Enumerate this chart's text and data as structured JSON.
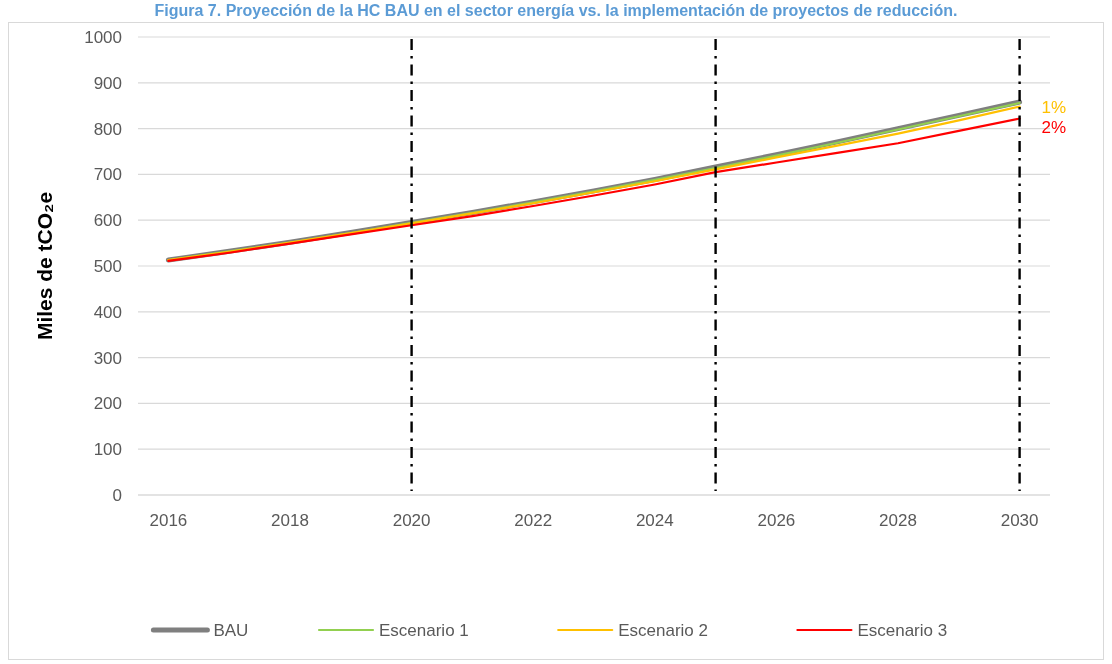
{
  "chart_data": {
    "type": "line",
    "title": "Figura 7. Proyección de la HC BAU en el sector energía vs. la implementación de proyectos de reducción.",
    "ylabel": "Miles de tCO₂e",
    "x": [
      2016,
      2017,
      2018,
      2019,
      2020,
      2021,
      2022,
      2023,
      2024,
      2025,
      2026,
      2027,
      2028,
      2029,
      2030
    ],
    "xlim": [
      2015.5,
      2030.5
    ],
    "xticks": [
      2016,
      2018,
      2020,
      2022,
      2024,
      2026,
      2028,
      2030
    ],
    "ylim": [
      0,
      1000
    ],
    "yticks": [
      0,
      100,
      200,
      300,
      400,
      500,
      600,
      700,
      800,
      900,
      1000
    ],
    "grid": "y",
    "legend": "bottom",
    "series": [
      {
        "name": "BAU",
        "color": "#7f7f7f",
        "values": [
          513,
          532,
          552,
          573,
          595,
          617,
          640,
          664,
          689,
          716,
          743,
          771,
          800,
          829,
          858
        ]
      },
      {
        "name": "Escenario 1",
        "color": "#92d050",
        "values": [
          513,
          532,
          551,
          572,
          594,
          616,
          639,
          663,
          688,
          714,
          741,
          769,
          798,
          827,
          856
        ]
      },
      {
        "name": "Escenario 2",
        "color": "#ffc000",
        "values": [
          513,
          531,
          551,
          572,
          593,
          615,
          637,
          661,
          685,
          711,
          737,
          763,
          789,
          818,
          848
        ]
      },
      {
        "name": "Escenario 3",
        "color": "#ff0000",
        "values": [
          511,
          529,
          549,
          569,
          589,
          609,
          631,
          654,
          678,
          705,
          726,
          747,
          768,
          795,
          822
        ]
      }
    ],
    "ref_lines": [
      {
        "axis": "x",
        "value": 2020,
        "color": "#000000",
        "line_style": "dashed"
      },
      {
        "axis": "x",
        "value": 2025,
        "color": "#000000",
        "line_style": "dashed"
      },
      {
        "axis": "x",
        "value": 2030,
        "color": "#000000",
        "line_style": "dashed"
      }
    ],
    "annotations": [
      {
        "text": "1%",
        "x": 2030,
        "y": 848
      },
      {
        "text": "2%",
        "x": 2030,
        "y": 822
      }
    ]
  }
}
